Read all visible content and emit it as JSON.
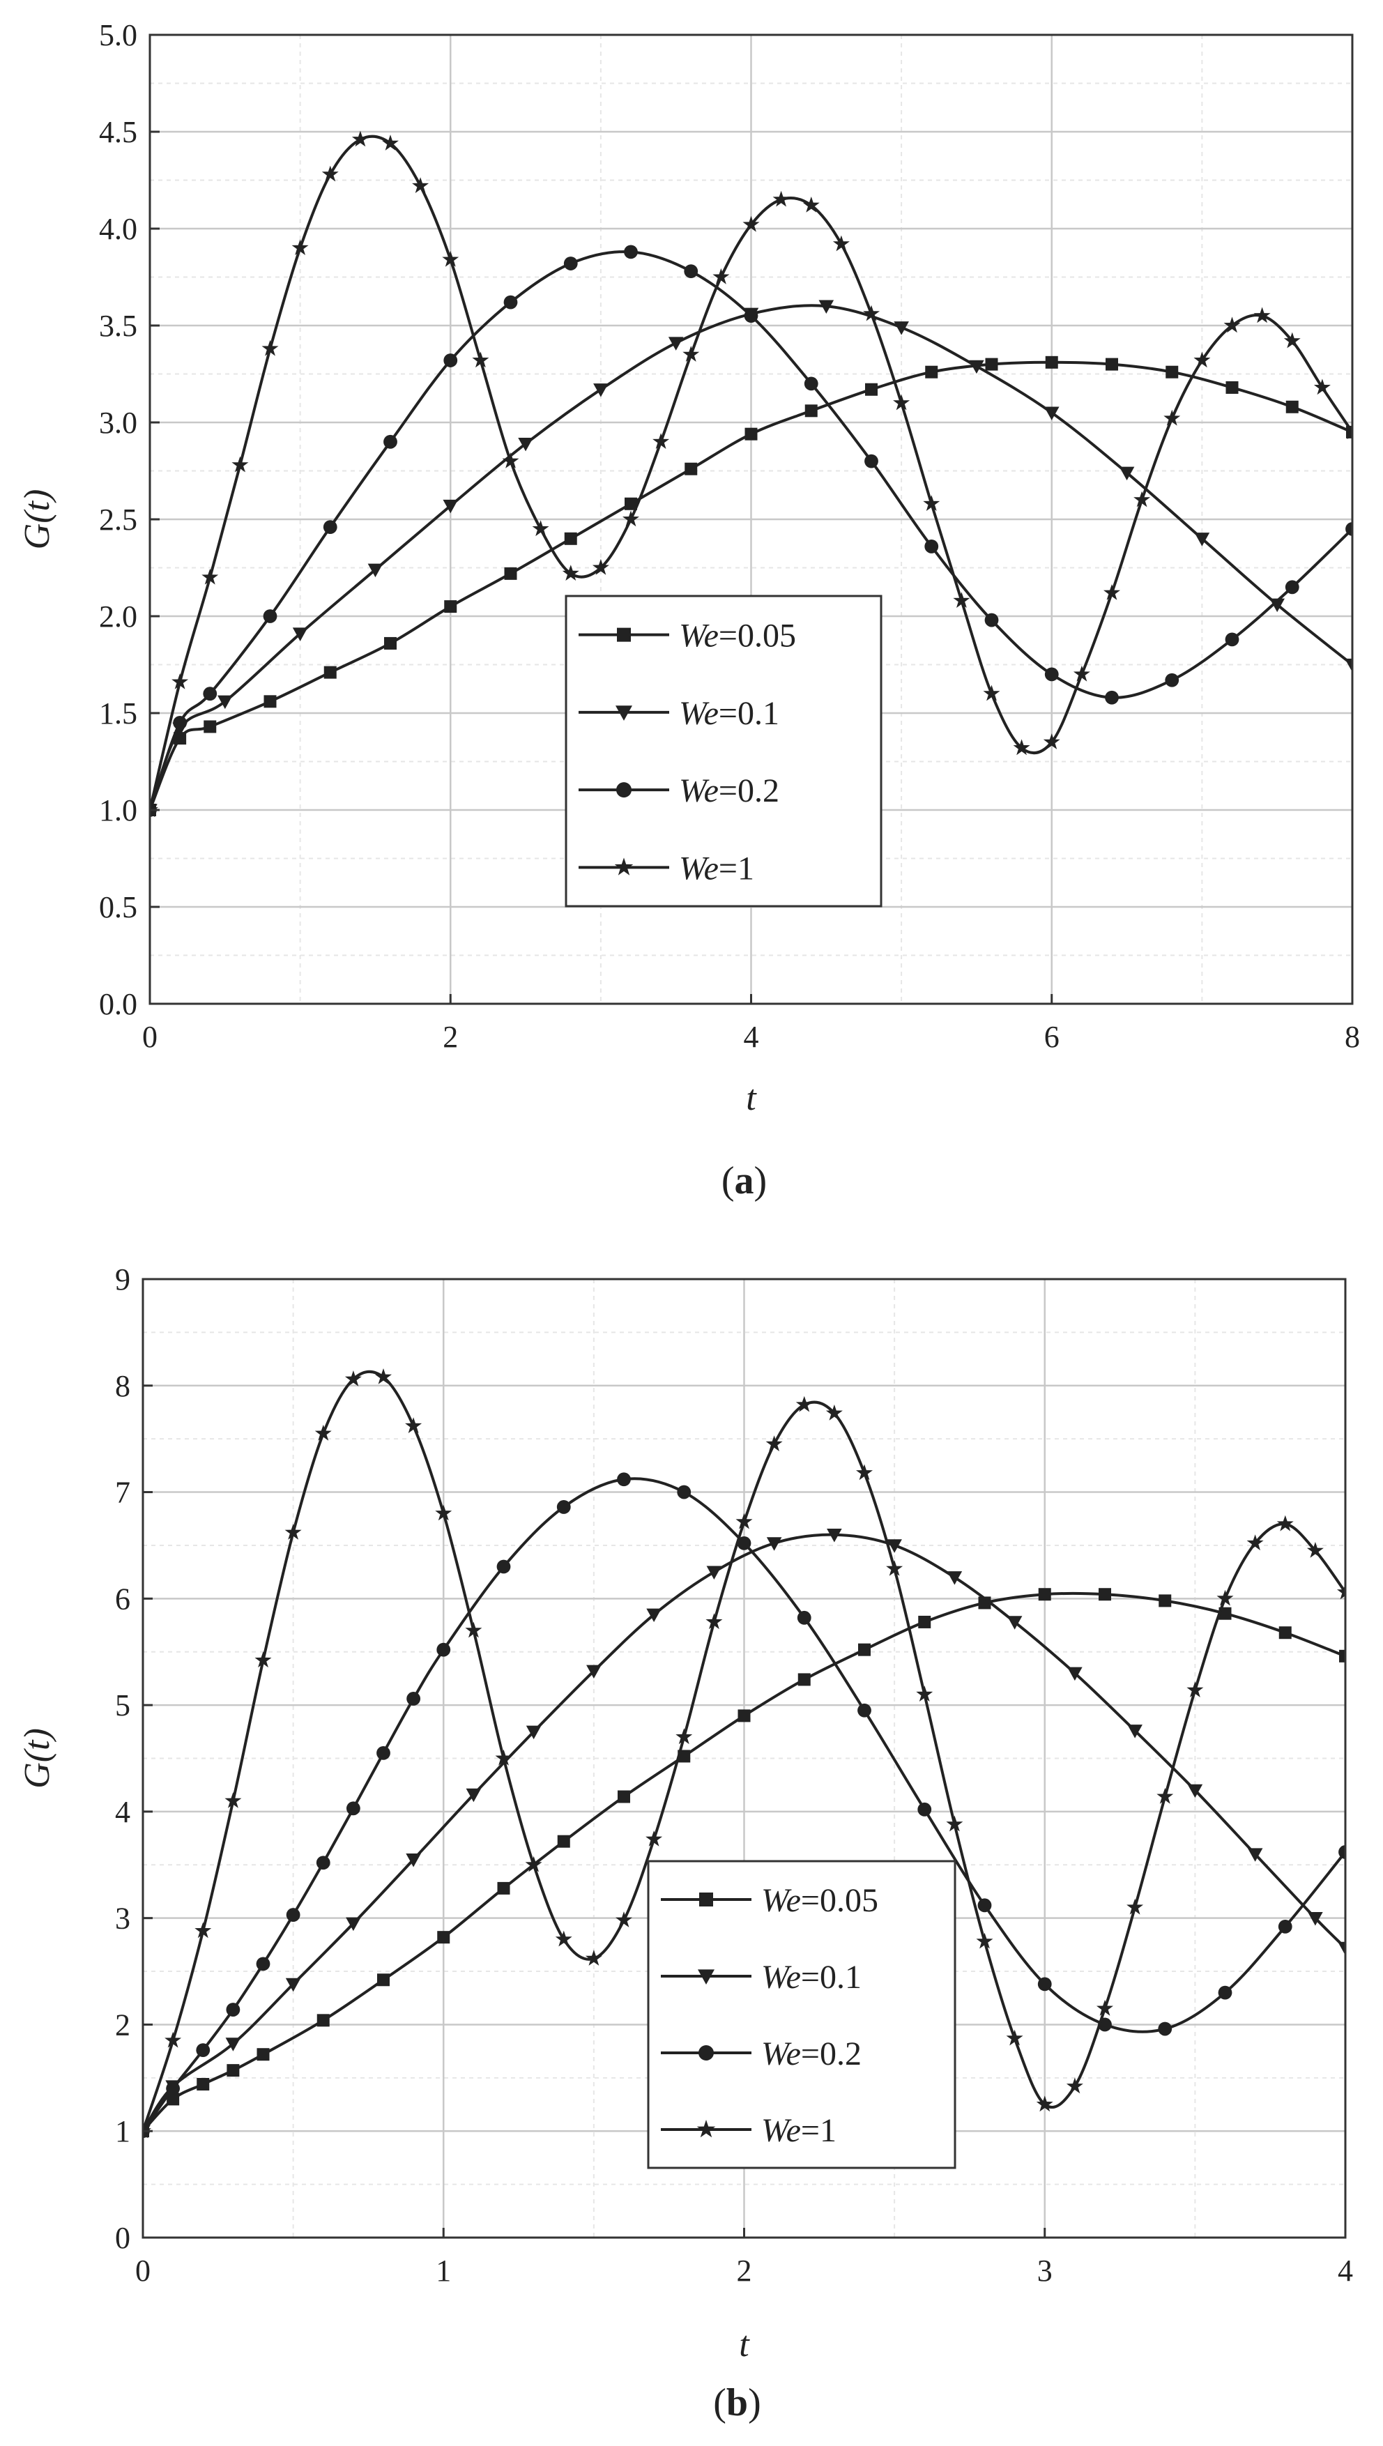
{
  "chart_data": [
    {
      "type": "line",
      "panel_label": "a",
      "xlabel": "t",
      "ylabel": "G(t)",
      "xlim": [
        0,
        8
      ],
      "ylim": [
        0,
        5
      ],
      "xticks": [
        "0",
        "2",
        "4",
        "6",
        "8"
      ],
      "yticks": [
        "0.0",
        "0.5",
        "1.0",
        "1.5",
        "2.0",
        "2.5",
        "3.0",
        "3.5",
        "4.0",
        "4.5",
        "5.0"
      ],
      "grid": true,
      "legend_placement": "center",
      "series": [
        {
          "name": "We=0.05",
          "marker": "square",
          "x": [
            0,
            0.2,
            0.4,
            0.8,
            1.2,
            1.6,
            2.0,
            2.4,
            2.8,
            3.2,
            3.6,
            4.0,
            4.4,
            4.8,
            5.2,
            5.6,
            6.0,
            6.4,
            6.8,
            7.2,
            7.6,
            8.0
          ],
          "y": [
            1.0,
            1.37,
            1.43,
            1.56,
            1.71,
            1.86,
            2.05,
            2.22,
            2.4,
            2.58,
            2.76,
            2.94,
            3.06,
            3.17,
            3.26,
            3.3,
            3.31,
            3.3,
            3.26,
            3.18,
            3.08,
            2.95
          ]
        },
        {
          "name": "We=0.1",
          "marker": "triangle-down",
          "x": [
            0,
            0.2,
            0.5,
            1.0,
            1.5,
            2.0,
            2.5,
            3.0,
            3.5,
            4.0,
            4.5,
            5.0,
            5.5,
            6.0,
            6.5,
            7.0,
            7.5,
            8.0
          ],
          "y": [
            1.0,
            1.42,
            1.56,
            1.91,
            2.24,
            2.57,
            2.89,
            3.17,
            3.41,
            3.56,
            3.6,
            3.49,
            3.29,
            3.05,
            2.74,
            2.4,
            2.06,
            1.75
          ]
        },
        {
          "name": "We=0.2",
          "marker": "circle",
          "x": [
            0,
            0.2,
            0.4,
            0.8,
            1.2,
            1.6,
            2.0,
            2.4,
            2.8,
            3.2,
            3.6,
            4.0,
            4.4,
            4.8,
            5.2,
            5.6,
            6.0,
            6.4,
            6.8,
            7.2,
            7.6,
            8.0
          ],
          "y": [
            1.0,
            1.45,
            1.6,
            2.0,
            2.46,
            2.9,
            3.32,
            3.62,
            3.82,
            3.88,
            3.78,
            3.55,
            3.2,
            2.8,
            2.36,
            1.98,
            1.7,
            1.58,
            1.67,
            1.88,
            2.15,
            2.45
          ]
        },
        {
          "name": "We=1",
          "marker": "star",
          "x": [
            0,
            0.2,
            0.4,
            0.6,
            0.8,
            1.0,
            1.2,
            1.4,
            1.6,
            1.8,
            2.0,
            2.2,
            2.4,
            2.6,
            2.8,
            3.0,
            3.2,
            3.4,
            3.6,
            3.8,
            4.0,
            4.2,
            4.4,
            4.6,
            4.8,
            5.0,
            5.2,
            5.4,
            5.6,
            5.8,
            6.0,
            6.2,
            6.4,
            6.6,
            6.8,
            7.0,
            7.2,
            7.4,
            7.6,
            7.8,
            8.0
          ],
          "y": [
            1.0,
            1.66,
            2.2,
            2.78,
            3.38,
            3.9,
            4.28,
            4.46,
            4.44,
            4.22,
            3.84,
            3.32,
            2.8,
            2.45,
            2.22,
            2.25,
            2.5,
            2.9,
            3.35,
            3.75,
            4.02,
            4.15,
            4.12,
            3.92,
            3.56,
            3.1,
            2.58,
            2.08,
            1.6,
            1.32,
            1.35,
            1.7,
            2.12,
            2.6,
            3.02,
            3.32,
            3.5,
            3.55,
            3.42,
            3.18,
            2.95
          ]
        }
      ]
    },
    {
      "type": "line",
      "panel_label": "b",
      "xlabel": "t",
      "ylabel": "G(t)",
      "xlim": [
        0,
        4
      ],
      "ylim": [
        0,
        9
      ],
      "xticks": [
        "0",
        "1",
        "2",
        "3",
        "4"
      ],
      "yticks": [
        "0",
        "1",
        "2",
        "3",
        "4",
        "5",
        "6",
        "7",
        "8",
        "9"
      ],
      "grid": true,
      "legend_placement": "bottom-right",
      "series": [
        {
          "name": "We=0.05",
          "marker": "square",
          "x": [
            0,
            0.1,
            0.2,
            0.3,
            0.4,
            0.6,
            0.8,
            1.0,
            1.2,
            1.4,
            1.6,
            1.8,
            2.0,
            2.2,
            2.4,
            2.6,
            2.8,
            3.0,
            3.2,
            3.4,
            3.6,
            3.8,
            4.0
          ],
          "y": [
            1.0,
            1.3,
            1.44,
            1.57,
            1.72,
            2.04,
            2.42,
            2.82,
            3.28,
            3.72,
            4.14,
            4.52,
            4.9,
            5.24,
            5.52,
            5.78,
            5.96,
            6.04,
            6.04,
            5.98,
            5.86,
            5.68,
            5.46
          ]
        },
        {
          "name": "We=0.1",
          "marker": "triangle-down",
          "x": [
            0,
            0.1,
            0.3,
            0.5,
            0.7,
            0.9,
            1.1,
            1.3,
            1.5,
            1.7,
            1.9,
            2.1,
            2.3,
            2.5,
            2.7,
            2.9,
            3.1,
            3.3,
            3.5,
            3.7,
            3.9,
            4.0
          ],
          "y": [
            1.0,
            1.42,
            1.82,
            2.38,
            2.95,
            3.55,
            4.16,
            4.75,
            5.32,
            5.85,
            6.25,
            6.52,
            6.6,
            6.5,
            6.2,
            5.78,
            5.3,
            4.76,
            4.2,
            3.6,
            3.0,
            2.72
          ]
        },
        {
          "name": "We=0.2",
          "marker": "circle",
          "x": [
            0,
            0.1,
            0.2,
            0.3,
            0.4,
            0.5,
            0.6,
            0.7,
            0.8,
            0.9,
            1.0,
            1.2,
            1.4,
            1.6,
            1.8,
            2.0,
            2.2,
            2.4,
            2.6,
            2.8,
            3.0,
            3.2,
            3.4,
            3.6,
            3.8,
            4.0
          ],
          "y": [
            1.0,
            1.4,
            1.76,
            2.14,
            2.57,
            3.03,
            3.52,
            4.03,
            4.55,
            5.06,
            5.52,
            6.3,
            6.86,
            7.12,
            7.0,
            6.52,
            5.82,
            4.95,
            4.02,
            3.12,
            2.38,
            2.0,
            1.96,
            2.3,
            2.92,
            3.62
          ]
        },
        {
          "name": "We=1",
          "marker": "star",
          "x": [
            0,
            0.1,
            0.2,
            0.3,
            0.4,
            0.5,
            0.6,
            0.7,
            0.8,
            0.9,
            1.0,
            1.1,
            1.2,
            1.3,
            1.4,
            1.5,
            1.6,
            1.7,
            1.8,
            1.9,
            2.0,
            2.1,
            2.2,
            2.3,
            2.4,
            2.5,
            2.6,
            2.7,
            2.8,
            2.9,
            3.0,
            3.1,
            3.2,
            3.3,
            3.4,
            3.5,
            3.6,
            3.7,
            3.8,
            3.9,
            4.0
          ],
          "y": [
            1.0,
            1.85,
            2.88,
            4.1,
            5.42,
            6.62,
            7.55,
            8.06,
            8.08,
            7.62,
            6.8,
            5.7,
            4.5,
            3.5,
            2.8,
            2.62,
            2.98,
            3.74,
            4.7,
            5.78,
            6.72,
            7.45,
            7.82,
            7.74,
            7.18,
            6.28,
            5.1,
            3.88,
            2.78,
            1.87,
            1.25,
            1.42,
            2.15,
            3.1,
            4.14,
            5.14,
            6.0,
            6.52,
            6.7,
            6.45,
            6.06
          ]
        }
      ]
    }
  ]
}
